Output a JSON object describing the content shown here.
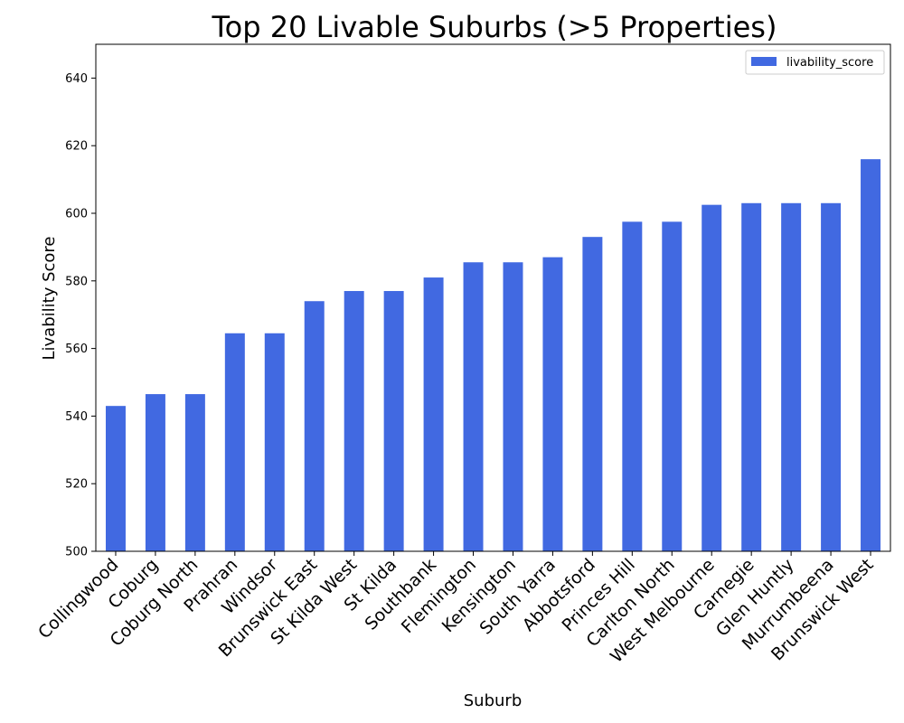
{
  "chart_data": {
    "type": "bar",
    "title": "Top 20 Livable Suburbs (>5 Properties)",
    "xlabel": "Suburb",
    "ylabel": "Livability Score",
    "ylim": [
      500,
      650
    ],
    "yticks": [
      500,
      520,
      540,
      560,
      580,
      600,
      620,
      640
    ],
    "grid": false,
    "legend_position": "top-right",
    "bar_color": "#4169e1",
    "categories": [
      "Collingwood",
      "Coburg",
      "Coburg North",
      "Prahran",
      "Windsor",
      "Brunswick East",
      "St Kilda West",
      "St Kilda",
      "Southbank",
      "Flemington",
      "Kensington",
      "South Yarra",
      "Abbotsford",
      "Princes Hill",
      "Carlton North",
      "West Melbourne",
      "Carnegie",
      "Glen Huntly",
      "Murrumbeena",
      "Brunswick West"
    ],
    "series": [
      {
        "name": "livability_score",
        "values": [
          543.0,
          546.5,
          546.5,
          564.5,
          564.5,
          574.0,
          577.0,
          577.0,
          581.0,
          585.5,
          585.5,
          587.0,
          593.0,
          597.5,
          597.5,
          602.5,
          603.0,
          603.0,
          603.0,
          616.0
        ]
      }
    ]
  }
}
